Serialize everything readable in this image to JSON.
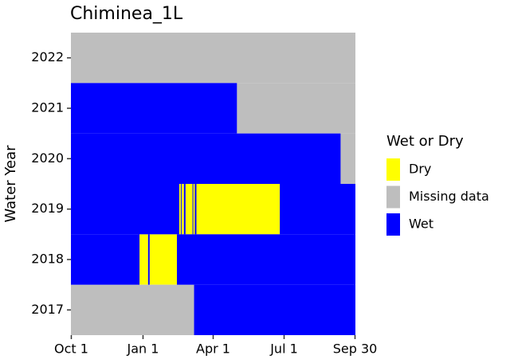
{
  "chart_data": {
    "type": "tile",
    "title": "Chiminea_1L",
    "y_label": "Water Year",
    "legend_title": "Wet or Dry",
    "xlim": [
      0.5,
      365.5
    ],
    "xticks": [
      {
        "value": 1,
        "label": "Oct 1"
      },
      {
        "value": 93,
        "label": "Jan 1"
      },
      {
        "value": 183,
        "label": "Apr 1"
      },
      {
        "value": 274,
        "label": "Jul 1"
      },
      {
        "value": 365,
        "label": "Sep 30"
      }
    ],
    "ylim": [
      2016.5,
      2022.5
    ],
    "yticks": [
      2017,
      2018,
      2019,
      2020,
      2021,
      2022
    ],
    "series": [
      {
        "name": "Dry",
        "color": "#ffff00",
        "years": [
          2018,
          2018,
          2019,
          2019,
          2019,
          2019,
          2019
        ],
        "start": [
          89,
          102,
          140,
          143,
          148,
          158,
          162
        ],
        "end": [
          99,
          136,
          141,
          145,
          156,
          159,
          268
        ]
      },
      {
        "name": "Missing data",
        "color": "#bebebe",
        "years": [
          2017,
          2020,
          2021,
          2022
        ],
        "start": [
          1,
          347,
          214,
          1
        ],
        "end": [
          158,
          365,
          365,
          365
        ]
      },
      {
        "name": "Wet",
        "color": "#0000ff",
        "years": [
          2017,
          2018,
          2018,
          2018,
          2019,
          2019,
          2019,
          2019,
          2019,
          2019,
          2020,
          2021
        ],
        "start": [
          159,
          1,
          100,
          137,
          1,
          142,
          146,
          157,
          160,
          269,
          1,
          1
        ],
        "end": [
          365,
          88,
          101,
          365,
          139,
          142,
          147,
          157,
          161,
          365,
          346,
          213
        ]
      }
    ]
  }
}
